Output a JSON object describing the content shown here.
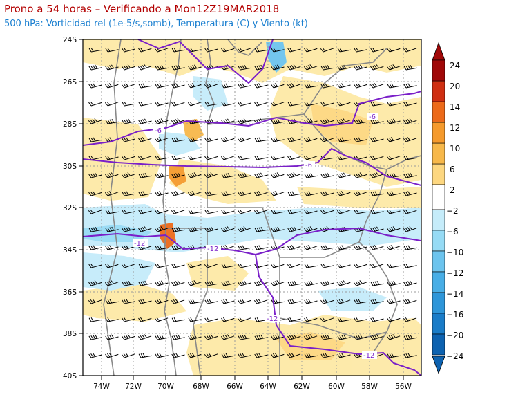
{
  "header": {
    "title": "Prono a 54 horas – Verificando a Mon12Z19MAR2018",
    "subtitle": "500 hPa: Vorticidad rel (1e-5/s,somb), Temperatura (C) y Viento (kt)"
  },
  "map": {
    "lat_labels": [
      "24S",
      "26S",
      "28S",
      "30S",
      "32S",
      "34S",
      "36S",
      "38S",
      "40S"
    ],
    "lon_labels": [
      "74W",
      "72W",
      "70W",
      "68W",
      "66W",
      "64W",
      "62W",
      "60W",
      "58W",
      "56W"
    ],
    "contour_labels": [
      "-6",
      "-6",
      "-6",
      "-12",
      "-12",
      "-12",
      "-12"
    ]
  },
  "colorbar": {
    "labels": [
      "24",
      "20",
      "14",
      "12",
      "10",
      "6",
      "2",
      "−2",
      "−6",
      "−10",
      "−12",
      "−14",
      "−16",
      "−20",
      "−24"
    ],
    "colors": [
      "#fde9a6",
      "#fdd780",
      "#f7b84a",
      "#f59a2c",
      "#ec6a1a",
      "#cf2f12",
      "#a00808"
    ],
    "neg_colors": [
      "#c5ecfa",
      "#96dbf5",
      "#6cc4ee",
      "#48aee6",
      "#2e96d9",
      "#1a7cc8",
      "#0d62b0"
    ]
  }
}
